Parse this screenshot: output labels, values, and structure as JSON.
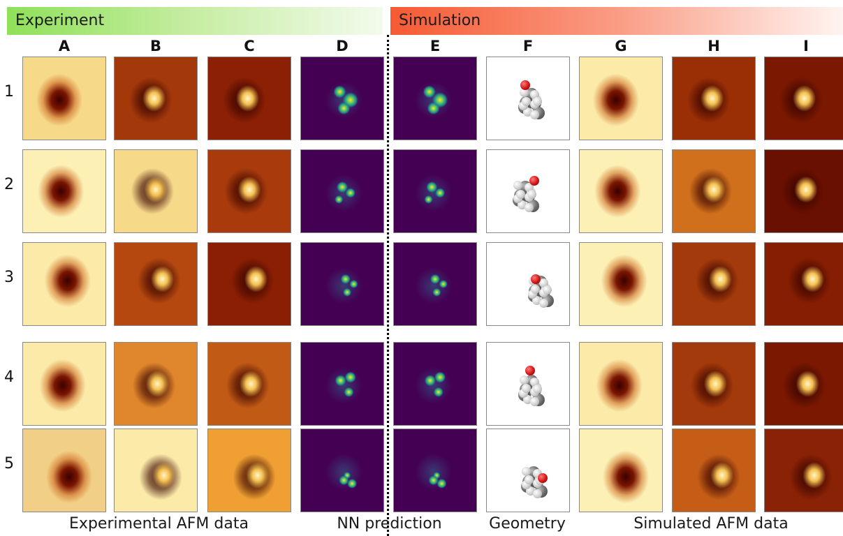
{
  "banners": {
    "experiment": "Experiment",
    "simulation": "Simulation"
  },
  "columns": [
    "A",
    "B",
    "C",
    "D",
    "E",
    "F",
    "G",
    "H",
    "I"
  ],
  "rows": [
    "1",
    "2",
    "3",
    "4",
    "5"
  ],
  "footer": {
    "experimental": "Experimental AFM data",
    "prediction": "NN prediction",
    "geometry": "Geometry",
    "simulated": "Simulated AFM data"
  },
  "colors": {
    "experiment_banner": "#8fe05a",
    "simulation_banner": "#f55a33",
    "viridis_background": "#440154",
    "viridis_blob": "#fde725",
    "oxygen_atom": "#d11414"
  }
}
